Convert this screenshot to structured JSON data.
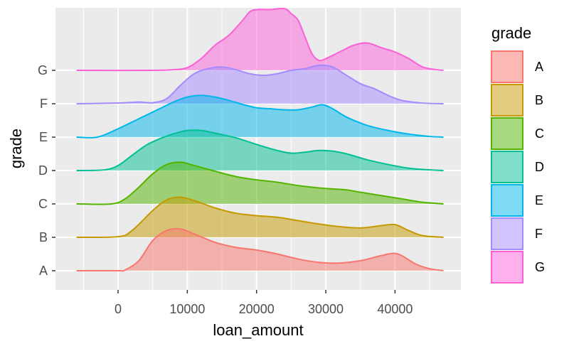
{
  "chart_data": {
    "type": "area",
    "subtype": "ridgeline",
    "xlabel": "loan_amount",
    "ylabel": "grade",
    "xlim": [
      -7000,
      49000
    ],
    "x_ticks": [
      0,
      10000,
      20000,
      30000,
      40000
    ],
    "x_tick_labels": [
      "0",
      "10000",
      "20000",
      "30000",
      "40000"
    ],
    "grid": true,
    "legend": {
      "title": "grade",
      "position": "right"
    },
    "series": [
      {
        "name": "A",
        "color": "#F8766D",
        "points": [
          [
            -6000,
            0
          ],
          [
            0,
            0
          ],
          [
            1000,
            0.02
          ],
          [
            3000,
            0.3
          ],
          [
            5000,
            0.9
          ],
          [
            7000,
            1.2
          ],
          [
            9000,
            1.25
          ],
          [
            11000,
            1.1
          ],
          [
            14000,
            0.85
          ],
          [
            17000,
            0.7
          ],
          [
            20000,
            0.62
          ],
          [
            23000,
            0.5
          ],
          [
            26000,
            0.35
          ],
          [
            29000,
            0.25
          ],
          [
            32000,
            0.23
          ],
          [
            35000,
            0.3
          ],
          [
            37000,
            0.4
          ],
          [
            39000,
            0.5
          ],
          [
            40000,
            0.52
          ],
          [
            41000,
            0.45
          ],
          [
            43000,
            0.2
          ],
          [
            45000,
            0.06
          ],
          [
            47000,
            0
          ]
        ]
      },
      {
        "name": "B",
        "color": "#C49A00",
        "points": [
          [
            -6000,
            0
          ],
          [
            0,
            0.02
          ],
          [
            2000,
            0.2
          ],
          [
            5000,
            0.8
          ],
          [
            7000,
            1.12
          ],
          [
            9000,
            1.2
          ],
          [
            11000,
            1.1
          ],
          [
            14000,
            0.88
          ],
          [
            17000,
            0.72
          ],
          [
            20000,
            0.65
          ],
          [
            23000,
            0.6
          ],
          [
            26000,
            0.5
          ],
          [
            29000,
            0.4
          ],
          [
            32000,
            0.32
          ],
          [
            35000,
            0.28
          ],
          [
            38000,
            0.35
          ],
          [
            40000,
            0.38
          ],
          [
            42000,
            0.2
          ],
          [
            44000,
            0.05
          ],
          [
            47000,
            0
          ]
        ]
      },
      {
        "name": "C",
        "color": "#53B400",
        "points": [
          [
            -6000,
            0
          ],
          [
            -1000,
            0
          ],
          [
            1000,
            0.15
          ],
          [
            3000,
            0.5
          ],
          [
            5000,
            0.9
          ],
          [
            7000,
            1.18
          ],
          [
            9000,
            1.25
          ],
          [
            11000,
            1.15
          ],
          [
            14000,
            0.98
          ],
          [
            17000,
            0.82
          ],
          [
            20000,
            0.72
          ],
          [
            23000,
            0.65
          ],
          [
            26000,
            0.55
          ],
          [
            29000,
            0.48
          ],
          [
            31000,
            0.45
          ],
          [
            33000,
            0.42
          ],
          [
            35000,
            0.35
          ],
          [
            38000,
            0.25
          ],
          [
            41000,
            0.15
          ],
          [
            44000,
            0.05
          ],
          [
            47000,
            0
          ]
        ]
      },
      {
        "name": "D",
        "color": "#00C094",
        "points": [
          [
            -6000,
            0
          ],
          [
            -2000,
            0.02
          ],
          [
            0,
            0.15
          ],
          [
            2000,
            0.45
          ],
          [
            4000,
            0.75
          ],
          [
            6000,
            0.95
          ],
          [
            8000,
            1.1
          ],
          [
            10000,
            1.2
          ],
          [
            12000,
            1.2
          ],
          [
            14000,
            1.12
          ],
          [
            17000,
            0.98
          ],
          [
            20000,
            0.78
          ],
          [
            23000,
            0.6
          ],
          [
            25000,
            0.52
          ],
          [
            27000,
            0.55
          ],
          [
            29000,
            0.6
          ],
          [
            31000,
            0.58
          ],
          [
            33000,
            0.5
          ],
          [
            36000,
            0.32
          ],
          [
            39000,
            0.18
          ],
          [
            42000,
            0.07
          ],
          [
            45000,
            0.02
          ],
          [
            47000,
            0
          ]
        ]
      },
      {
        "name": "E",
        "color": "#00B6EB",
        "points": [
          [
            -6000,
            0
          ],
          [
            -3000,
            0
          ],
          [
            0,
            0.25
          ],
          [
            3000,
            0.55
          ],
          [
            6000,
            0.85
          ],
          [
            8000,
            1.05
          ],
          [
            10000,
            1.2
          ],
          [
            12000,
            1.25
          ],
          [
            14000,
            1.2
          ],
          [
            16000,
            1.1
          ],
          [
            18000,
            0.98
          ],
          [
            20000,
            0.88
          ],
          [
            22000,
            0.85
          ],
          [
            24000,
            0.82
          ],
          [
            26000,
            0.82
          ],
          [
            28000,
            0.9
          ],
          [
            29500,
            0.97
          ],
          [
            31000,
            0.85
          ],
          [
            33000,
            0.6
          ],
          [
            36000,
            0.35
          ],
          [
            39000,
            0.2
          ],
          [
            42000,
            0.09
          ],
          [
            45000,
            0.02
          ],
          [
            47000,
            0
          ]
        ]
      },
      {
        "name": "F",
        "color": "#A58AFF",
        "points": [
          [
            -6000,
            0
          ],
          [
            0,
            0.02
          ],
          [
            3000,
            0.05
          ],
          [
            5000,
            0.03
          ],
          [
            7000,
            0.15
          ],
          [
            9000,
            0.55
          ],
          [
            11000,
            0.9
          ],
          [
            13000,
            1.05
          ],
          [
            15000,
            1.1
          ],
          [
            17000,
            1.02
          ],
          [
            19000,
            0.9
          ],
          [
            21000,
            0.85
          ],
          [
            23000,
            0.9
          ],
          [
            25000,
            1.0
          ],
          [
            27000,
            1.05
          ],
          [
            29000,
            1.15
          ],
          [
            31000,
            1.1
          ],
          [
            33000,
            0.85
          ],
          [
            35000,
            0.6
          ],
          [
            37000,
            0.45
          ],
          [
            39000,
            0.25
          ],
          [
            41000,
            0.1
          ],
          [
            44000,
            0.02
          ],
          [
            47000,
            0
          ]
        ]
      },
      {
        "name": "G",
        "color": "#FB61D7",
        "points": [
          [
            -6000,
            0
          ],
          [
            5000,
            0
          ],
          [
            8000,
            0.02
          ],
          [
            10000,
            0.08
          ],
          [
            12000,
            0.35
          ],
          [
            14000,
            0.75
          ],
          [
            16000,
            1.05
          ],
          [
            18000,
            1.5
          ],
          [
            19000,
            1.75
          ],
          [
            20000,
            1.82
          ],
          [
            22000,
            1.82
          ],
          [
            24000,
            1.85
          ],
          [
            25000,
            1.7
          ],
          [
            26000,
            1.5
          ],
          [
            27000,
            1.0
          ],
          [
            28000,
            0.5
          ],
          [
            29000,
            0.3
          ],
          [
            30000,
            0.35
          ],
          [
            32000,
            0.55
          ],
          [
            34000,
            0.75
          ],
          [
            36000,
            0.82
          ],
          [
            38000,
            0.68
          ],
          [
            40000,
            0.55
          ],
          [
            42000,
            0.35
          ],
          [
            44000,
            0.1
          ],
          [
            46000,
            0.02
          ],
          [
            47000,
            0
          ]
        ]
      }
    ]
  }
}
